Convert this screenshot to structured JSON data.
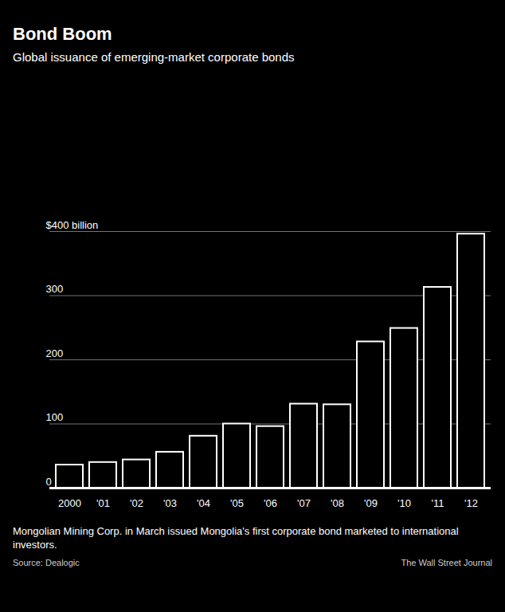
{
  "chart_data": {
    "type": "bar",
    "title": "Bond Boom",
    "subtitle": "Global issuance of emerging-market corporate bonds",
    "annotation": "Mongolian Mining Corp. in March issued Mongolia's first corporate bond marketed to international investors.",
    "source": "Source: Dealogic",
    "credit": "The Wall Street Journal",
    "categories": [
      "2000",
      "'01",
      "'02",
      "'03",
      "'04",
      "'05",
      "'06",
      "'07",
      "'08",
      "'09",
      "'10",
      "'11",
      "'12"
    ],
    "values": [
      36,
      40,
      44,
      56,
      81,
      100,
      96,
      131,
      130,
      228,
      249,
      313,
      396
    ],
    "color": "#000000",
    "ylim": [
      0,
      400
    ],
    "yticks": [
      0,
      100,
      200,
      300,
      {
        "value": 400,
        "label": "$400 billion"
      }
    ],
    "grid": true
  }
}
